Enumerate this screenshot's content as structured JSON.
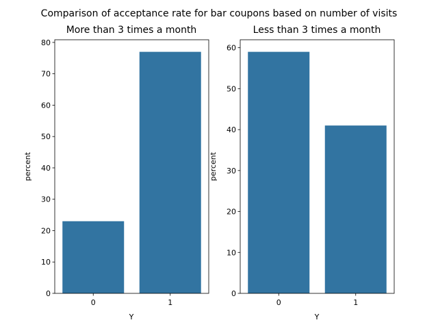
{
  "figure": {
    "title": "Comparison of acceptance rate for bar coupons based on number of visits"
  },
  "chart_data": [
    {
      "type": "bar",
      "title": "More than 3 times a month",
      "xlabel": "Y",
      "ylabel": "percent",
      "categories": [
        "0",
        "1"
      ],
      "values": [
        23.0,
        77.0
      ],
      "ylim": [
        0,
        80.85
      ],
      "yticks": [
        0,
        10,
        20,
        30,
        40,
        50,
        60,
        70,
        80
      ],
      "color": "#3274a1",
      "grid": false
    },
    {
      "type": "bar",
      "title": "Less than 3 times a month",
      "xlabel": "Y",
      "ylabel": "percent",
      "categories": [
        "0",
        "1"
      ],
      "values": [
        59.0,
        41.0
      ],
      "ylim": [
        0,
        61.95
      ],
      "yticks": [
        0,
        10,
        20,
        30,
        40,
        50,
        60
      ],
      "color": "#3274a1",
      "grid": false
    }
  ]
}
